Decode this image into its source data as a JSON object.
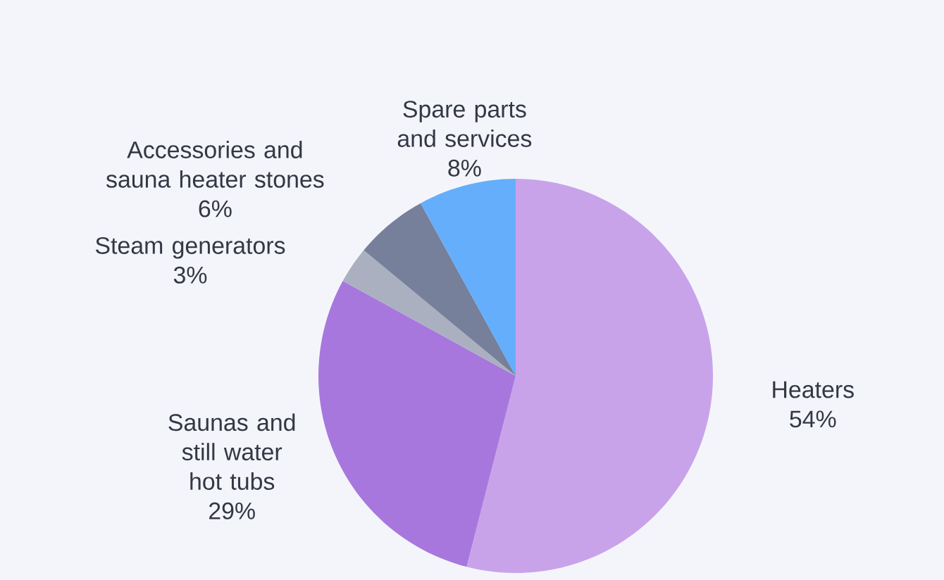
{
  "chart_data": {
    "type": "pie",
    "categories": [
      "Heaters",
      "Saunas and still water hot tubs",
      "Steam generators",
      "Accessories and sauna heater stones",
      "Spare parts and services"
    ],
    "values": [
      54,
      29,
      3,
      6,
      8
    ],
    "value_labels": [
      "54%",
      "29%",
      "3%",
      "6%",
      "8%"
    ],
    "colors": [
      "#c8a3ea",
      "#a877de",
      "#aab0c0",
      "#76809a",
      "#64aefc"
    ]
  }
}
